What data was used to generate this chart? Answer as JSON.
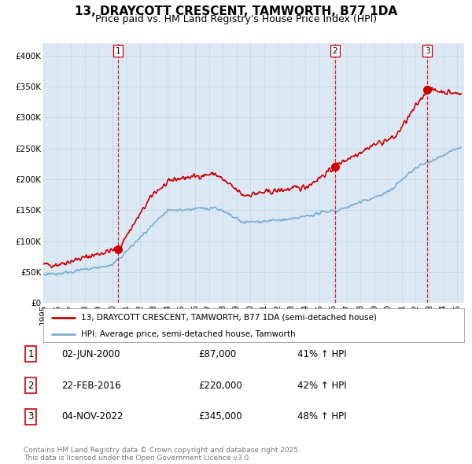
{
  "title": "13, DRAYCOTT CRESCENT, TAMWORTH, B77 1DA",
  "subtitle": "Price paid vs. HM Land Registry's House Price Index (HPI)",
  "title_fontsize": 11,
  "subtitle_fontsize": 9,
  "background_color": "#dce9f5",
  "red_line_color": "#cc0000",
  "blue_line_color": "#7bafd4",
  "dashed_line_color": "#cc0000",
  "sale1_date": 2000.42,
  "sale1_price": 87000,
  "sale1_label": "1",
  "sale2_date": 2016.14,
  "sale2_price": 220000,
  "sale2_label": "2",
  "sale3_date": 2022.84,
  "sale3_price": 345000,
  "sale3_label": "3",
  "ylim": [
    0,
    420000
  ],
  "xlim_start": 1995,
  "xlim_end": 2025.5,
  "legend_line1": "13, DRAYCOTT CRESCENT, TAMWORTH, B77 1DA (semi-detached house)",
  "legend_line2": "HPI: Average price, semi-detached house, Tamworth",
  "table_rows": [
    [
      "1",
      "02-JUN-2000",
      "£87,000",
      "41% ↑ HPI"
    ],
    [
      "2",
      "22-FEB-2016",
      "£220,000",
      "42% ↑ HPI"
    ],
    [
      "3",
      "04-NOV-2022",
      "£345,000",
      "48% ↑ HPI"
    ]
  ],
  "footer": "Contains HM Land Registry data © Crown copyright and database right 2025.\nThis data is licensed under the Open Government Licence v3.0."
}
